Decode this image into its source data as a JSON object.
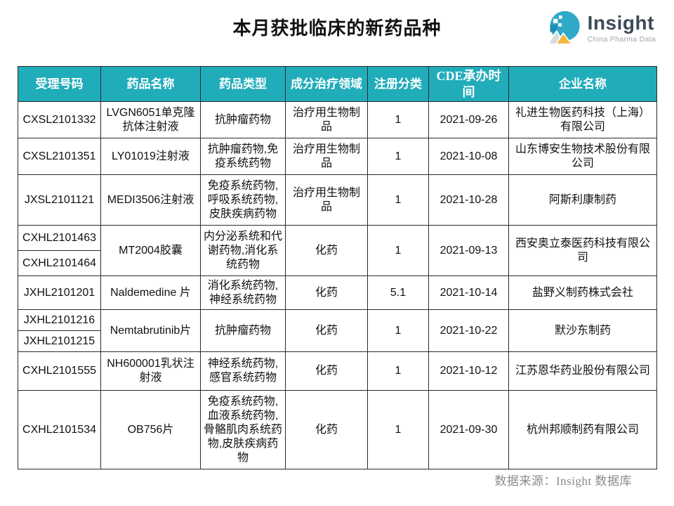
{
  "title": "本月获批临床的新药品种",
  "logo": {
    "name": "Insight",
    "subtitle": "China Pharma Data"
  },
  "table": {
    "headers": [
      "受理号码",
      "药品名称",
      "药品类型",
      "成分治疗领域",
      "注册分类",
      "CDE承办时间",
      "企业名称"
    ],
    "rows": [
      {
        "ids": [
          "CXSL2101332"
        ],
        "name": "LVGN6051单克隆抗体注射液",
        "type": "抗肿瘤药物",
        "field": "治疗用生物制品",
        "reg_class": "1",
        "cde_date": "2021-09-26",
        "company": "礼进生物医药科技（上海）有限公司"
      },
      {
        "ids": [
          "CXSL2101351"
        ],
        "name": "LY01019注射液",
        "type": "抗肿瘤药物,免疫系统药物",
        "field": "治疗用生物制品",
        "reg_class": "1",
        "cde_date": "2021-10-08",
        "company": "山东博安生物技术股份有限公司"
      },
      {
        "ids": [
          "JXSL2101121"
        ],
        "name": "MEDI3506注射液",
        "type": "免疫系统药物,呼吸系统药物,皮肤疾病药物",
        "field": "治疗用生物制品",
        "reg_class": "1",
        "cde_date": "2021-10-28",
        "company": "阿斯利康制药"
      },
      {
        "ids": [
          "CXHL2101463",
          "CXHL2101464"
        ],
        "name": "MT2004胶囊",
        "type": "内分泌系统和代谢药物,消化系统药物",
        "field": "化药",
        "reg_class": "1",
        "cde_date": "2021-09-13",
        "company": "西安奥立泰医药科技有限公司"
      },
      {
        "ids": [
          "JXHL2101201"
        ],
        "name": "Naldemedine 片",
        "type": "消化系统药物,神经系统药物",
        "field": "化药",
        "reg_class": "5.1",
        "cde_date": "2021-10-14",
        "company": "盐野义制药株式会社"
      },
      {
        "ids": [
          "JXHL2101216",
          "JXHL2101215"
        ],
        "name": "Nemtabrutinib片",
        "type": "抗肿瘤药物",
        "field": "化药",
        "reg_class": "1",
        "cde_date": "2021-10-22",
        "company": "默沙东制药"
      },
      {
        "ids": [
          "CXHL2101555"
        ],
        "name": "NH600001乳状注射液",
        "type": "神经系统药物,感官系统药物",
        "field": "化药",
        "reg_class": "1",
        "cde_date": "2021-10-12",
        "company": "江苏恩华药业股份有限公司"
      },
      {
        "ids": [
          "CXHL2101534"
        ],
        "name": "OB756片",
        "type": "免疫系统药物,血液系统药物,骨骼肌肉系统药物,皮肤疾病药物",
        "field": "化药",
        "reg_class": "1",
        "cde_date": "2021-09-30",
        "company": "杭州邦顺制药有限公司"
      }
    ]
  },
  "footer": {
    "source_note": "数据来源：Insight 数据库"
  },
  "colors": {
    "header_bg": "#21ACBA",
    "header_text": "#FFFFFF",
    "border_dark": "#2B2B2B",
    "sub_divider_gray": "#9B9B9B",
    "footer_gray": "#8B8B8B",
    "logo_teal": "#2FA9C8",
    "logo_navy": "#3D4A59",
    "logo_subtitle_gray": "#A0A4A9",
    "logo_yellow": "#F3B73D",
    "logo_light_gray": "#D9DCDE"
  }
}
